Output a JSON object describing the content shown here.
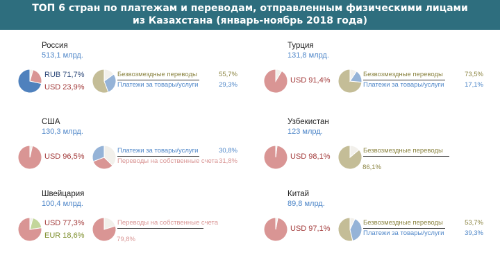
{
  "title_line1": "ТОП 6 стран по платежам и переводам, отправленным физическими лицами",
  "title_line2": "из Казахстана (январь-ноябрь 2018 года)",
  "chart_data": [
    {
      "type": "pie",
      "country": "Россия",
      "total": "513,1 млрд.",
      "currency": [
        {
          "label": "RUB 71,7%",
          "value": 71.7,
          "color": "#4f81bd"
        },
        {
          "label": "USD 23,9%",
          "value": 23.9,
          "color": "#d99594"
        }
      ],
      "purpose": [
        {
          "label": "Безвозмездные переводы",
          "pct": "55,7%",
          "value": 55.7,
          "color": "#c4bd97"
        },
        {
          "label": "Платежи за товары/услуги",
          "pct": "29,3%",
          "value": 29.3,
          "color": "#95b3d7"
        }
      ]
    },
    {
      "type": "pie",
      "country": "Турция",
      "total": "131,8 млрд.",
      "currency": [
        {
          "label": "USD 91,4%",
          "value": 91.4,
          "color": "#d99594"
        }
      ],
      "purpose": [
        {
          "label": "Безвозмездные переводы",
          "pct": "73,5%",
          "value": 73.5,
          "color": "#c4bd97"
        },
        {
          "label": "Платежи за товары/услуги",
          "pct": "17,1%",
          "value": 17.1,
          "color": "#95b3d7"
        }
      ]
    },
    {
      "type": "pie",
      "country": "США",
      "total": "130,3 млрд.",
      "currency": [
        {
          "label": "USD 96,5%",
          "value": 96.5,
          "color": "#d99594"
        }
      ],
      "purpose": [
        {
          "label": "Платежи за товары/услуги",
          "pct": "30,8%",
          "value": 30.8,
          "color": "#95b3d7"
        },
        {
          "label": "Переводы на собственные счета",
          "pct": "31,8%",
          "value": 31.8,
          "color": "#d99594"
        }
      ]
    },
    {
      "type": "pie",
      "country": "Узбекистан",
      "total": "123 млрд.",
      "currency": [
        {
          "label": "USD 98,1%",
          "value": 98.1,
          "color": "#d99594"
        }
      ],
      "purpose": [
        {
          "label": "Безвозмездные переводы",
          "pct": "86,1%",
          "value": 86.1,
          "color": "#c4bd97"
        }
      ]
    },
    {
      "type": "pie",
      "country": "Швейцария",
      "total": "100,4 млрд.",
      "currency": [
        {
          "label": "USD 77,3%",
          "value": 77.3,
          "color": "#d99594"
        },
        {
          "label": "EUR 18,6%",
          "value": 18.6,
          "color": "#c3d69b"
        }
      ],
      "purpose": [
        {
          "label": "Переводы на собственные счета",
          "pct": "79,8%",
          "value": 79.8,
          "color": "#d99594"
        }
      ]
    },
    {
      "type": "pie",
      "country": "Китай",
      "total": "89,8 млрд.",
      "currency": [
        {
          "label": "USD 97,1%",
          "value": 97.1,
          "color": "#d99594"
        }
      ],
      "purpose": [
        {
          "label": "Безвозмездные переводы",
          "pct": "53,7%",
          "value": 53.7,
          "color": "#c4bd97"
        },
        {
          "label": "Платежи за товары/услуги",
          "pct": "39,3%",
          "value": 39.3,
          "color": "#95b3d7"
        }
      ]
    }
  ]
}
